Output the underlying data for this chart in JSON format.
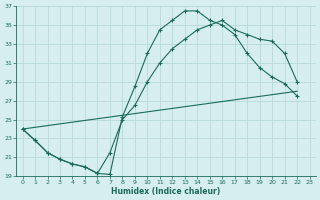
{
  "xlabel": "Humidex (Indice chaleur)",
  "bg_color": "#d6eef0",
  "grid_color": "#b8d8dc",
  "line_color": "#1a6b5a",
  "xlim": [
    -0.5,
    23.5
  ],
  "ylim": [
    19,
    37
  ],
  "xticks": [
    0,
    1,
    2,
    3,
    4,
    5,
    6,
    7,
    8,
    9,
    10,
    11,
    12,
    13,
    14,
    15,
    16,
    17,
    18,
    19,
    20,
    21,
    22,
    23
  ],
  "yticks": [
    19,
    21,
    23,
    25,
    27,
    29,
    31,
    33,
    35,
    37
  ],
  "curve1_x": [
    0,
    1,
    2,
    3,
    4,
    5,
    6,
    7,
    8,
    9,
    10,
    11,
    12,
    13,
    14,
    15,
    16,
    17,
    18,
    19,
    20,
    21,
    22
  ],
  "curve1_y": [
    24.0,
    22.8,
    21.5,
    20.8,
    20.3,
    20.0,
    19.3,
    19.2,
    25.3,
    28.5,
    32.0,
    34.5,
    35.5,
    36.5,
    36.5,
    35.5,
    35.0,
    34.0,
    32.0,
    30.5,
    29.5,
    28.8,
    27.5
  ],
  "curve2_x": [
    0,
    1,
    2,
    3,
    4,
    5,
    6,
    7,
    8,
    9,
    10,
    11,
    12,
    13,
    14,
    15,
    16,
    17,
    18,
    19,
    20,
    21,
    22
  ],
  "curve2_y": [
    24.0,
    22.8,
    21.5,
    20.8,
    20.3,
    20.0,
    19.3,
    21.5,
    25.0,
    26.5,
    29.0,
    31.0,
    32.5,
    33.5,
    34.5,
    35.0,
    35.5,
    34.5,
    34.0,
    33.5,
    33.3,
    32.0,
    29.0
  ],
  "line3_x": [
    0,
    22
  ],
  "line3_y": [
    24.0,
    28.0
  ]
}
